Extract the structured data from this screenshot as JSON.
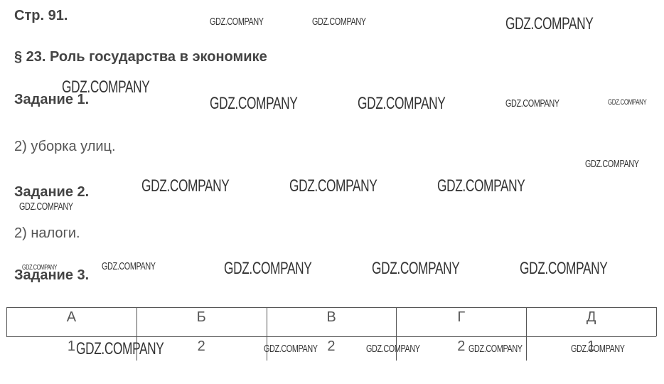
{
  "header": {
    "page": "Стр. 91.",
    "section": "§ 23. Роль государства в экономике"
  },
  "tasks": [
    {
      "title": "Задание 1.",
      "answer": "2) уборка улиц."
    },
    {
      "title": "Задание 2.",
      "answer": "2) налоги."
    },
    {
      "title": "Задание 3."
    }
  ],
  "table": {
    "header": [
      "А",
      "Б",
      "В",
      "Г",
      "Д"
    ],
    "rows": [
      [
        "1",
        "2",
        "2",
        "2",
        "1"
      ]
    ]
  },
  "watermarks": [
    "GDZ.COMPANY",
    "GDZ.COMPANY",
    "GDZ.COMPANY",
    "GDZ.COMPANY",
    "GDZ.COMPANY",
    "GDZ.COMPANY",
    "GDZ.COMPANY",
    "GDZ.COMPANY",
    "GDZ.COMPANY",
    "GDZ.COMPANY",
    "GDZ.COMPANY",
    "GDZ.COMPANY",
    "GDZ.COMPANY",
    "GDZ.COMPANY",
    "GDZ.COMPANY",
    "GDZ.COMPANY",
    "GDZ.COMPANY",
    "GDZ.COMPANY",
    "GDZ.COMPANY",
    "GDZ.COMPANY",
    "GDZ.COMPANY",
    "GDZ.COMPANY",
    "GDZ.COMPANY"
  ]
}
